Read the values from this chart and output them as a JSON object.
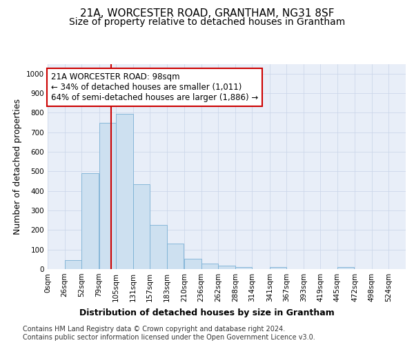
{
  "title1": "21A, WORCESTER ROAD, GRANTHAM, NG31 8SF",
  "title2": "Size of property relative to detached houses in Grantham",
  "xlabel": "Distribution of detached houses by size in Grantham",
  "ylabel": "Number of detached properties",
  "bin_labels": [
    "0sqm",
    "26sqm",
    "52sqm",
    "79sqm",
    "105sqm",
    "131sqm",
    "157sqm",
    "183sqm",
    "210sqm",
    "236sqm",
    "262sqm",
    "288sqm",
    "314sqm",
    "341sqm",
    "367sqm",
    "393sqm",
    "419sqm",
    "445sqm",
    "472sqm",
    "498sqm",
    "524sqm"
  ],
  "bar_values": [
    0,
    45,
    490,
    750,
    795,
    435,
    225,
    130,
    52,
    30,
    18,
    12,
    0,
    10,
    0,
    0,
    0,
    12,
    0,
    0,
    0
  ],
  "bar_color": "#cde0f0",
  "bar_edge_color": "#7ab0d4",
  "vline_x": 98,
  "vline_color": "#cc0000",
  "annotation_text": "21A WORCESTER ROAD: 98sqm\n← 34% of detached houses are smaller (1,011)\n64% of semi-detached houses are larger (1,886) →",
  "annotation_box_color": "#ffffff",
  "annotation_box_edge": "#cc0000",
  "ylim": [
    0,
    1050
  ],
  "yticks": [
    0,
    100,
    200,
    300,
    400,
    500,
    600,
    700,
    800,
    900,
    1000
  ],
  "grid_color": "#c8d4e8",
  "bg_color": "#e8eef8",
  "footer_text": "Contains HM Land Registry data © Crown copyright and database right 2024.\nContains public sector information licensed under the Open Government Licence v3.0.",
  "title1_fontsize": 11,
  "title2_fontsize": 10,
  "axis_label_fontsize": 9,
  "tick_fontsize": 7.5,
  "annotation_fontsize": 8.5,
  "footer_fontsize": 7,
  "bin_edges": [
    0,
    26,
    52,
    79,
    105,
    131,
    157,
    183,
    210,
    236,
    262,
    288,
    314,
    341,
    367,
    393,
    419,
    445,
    472,
    498,
    524
  ]
}
